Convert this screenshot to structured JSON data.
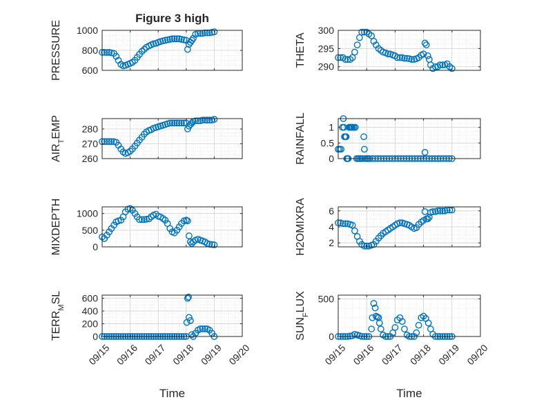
{
  "chart_data": [
    {
      "type": "scatter",
      "title": "Figure 3 high",
      "ylabel_main": "PRESSURE",
      "ylabel_sub": "",
      "ylabel_tail": "",
      "ylim": [
        600,
        1000
      ],
      "yticks": [
        600,
        800,
        1000
      ],
      "xlim": [
        0,
        5
      ],
      "xticks": [
        0,
        1,
        2,
        3,
        4,
        5
      ],
      "xticklabels": [
        "09/15",
        "09/16",
        "09/17",
        "09/18",
        "09/19",
        "09/20"
      ],
      "xlabel": "",
      "show_xticklabels": false,
      "grid": true,
      "color": "#0072BD",
      "x": [
        0.0,
        0.08,
        0.17,
        0.25,
        0.33,
        0.42,
        0.5,
        0.58,
        0.67,
        0.75,
        0.83,
        0.92,
        1.0,
        1.08,
        1.17,
        1.25,
        1.33,
        1.42,
        1.5,
        1.58,
        1.67,
        1.75,
        1.83,
        1.92,
        2.0,
        2.08,
        2.17,
        2.25,
        2.33,
        2.42,
        2.5,
        2.58,
        2.67,
        2.75,
        2.83,
        2.92,
        3.0,
        3.05,
        3.1,
        3.15,
        3.2,
        3.25,
        3.33,
        3.42,
        3.5,
        3.58,
        3.67,
        3.75,
        3.83,
        3.92,
        4.0
      ],
      "y": [
        780,
        780,
        778,
        780,
        775,
        770,
        740,
        700,
        660,
        645,
        650,
        660,
        670,
        680,
        700,
        730,
        760,
        790,
        810,
        830,
        845,
        855,
        865,
        870,
        880,
        888,
        895,
        900,
        905,
        910,
        915,
        915,
        915,
        915,
        910,
        905,
        900,
        810,
        860,
        880,
        900,
        920,
        960,
        970,
        970,
        970,
        975,
        975,
        975,
        980,
        985
      ]
    },
    {
      "type": "scatter",
      "title": "",
      "ylabel_main": "THETA",
      "ylabel_sub": "",
      "ylabel_tail": "",
      "ylim": [
        289,
        300
      ],
      "yticks": [
        290,
        295,
        300
      ],
      "xlim": [
        0,
        5
      ],
      "xticks": [
        0,
        1,
        2,
        3,
        4,
        5
      ],
      "xticklabels": [
        "09/15",
        "09/16",
        "09/17",
        "09/18",
        "09/19",
        "09/20"
      ],
      "xlabel": "",
      "show_xticklabels": false,
      "grid": true,
      "color": "#0072BD",
      "x": [
        0.0,
        0.08,
        0.17,
        0.25,
        0.33,
        0.42,
        0.5,
        0.58,
        0.67,
        0.75,
        0.83,
        0.92,
        1.0,
        1.08,
        1.17,
        1.25,
        1.33,
        1.42,
        1.5,
        1.58,
        1.67,
        1.75,
        1.83,
        1.92,
        2.0,
        2.08,
        2.17,
        2.25,
        2.33,
        2.42,
        2.5,
        2.58,
        2.67,
        2.75,
        2.83,
        2.92,
        3.0,
        3.05,
        3.1,
        3.15,
        3.2,
        3.25,
        3.33,
        3.42,
        3.5,
        3.58,
        3.67,
        3.75,
        3.83,
        3.92,
        4.0
      ],
      "y": [
        292.5,
        292.5,
        292.5,
        292,
        292,
        292,
        292.5,
        294,
        296,
        298,
        299.5,
        299.5,
        299.5,
        299,
        298.5,
        297,
        296,
        295,
        294.5,
        294,
        293.8,
        293.5,
        293.5,
        293.2,
        293,
        292.5,
        292.5,
        292.5,
        292.3,
        292.3,
        292.2,
        292,
        292,
        292.2,
        292.5,
        293.2,
        293.5,
        296.5,
        296,
        293,
        292,
        290.5,
        289.5,
        290,
        290,
        290.5,
        290.5,
        290.5,
        290.8,
        290,
        289.5
      ]
    },
    {
      "type": "scatter",
      "title": "",
      "ylabel_main": "AIR",
      "ylabel_sub": "T",
      "ylabel_tail": "EMP",
      "ylim": [
        260,
        287
      ],
      "yticks": [
        260,
        270,
        280
      ],
      "xlim": [
        0,
        5
      ],
      "xticks": [
        0,
        1,
        2,
        3,
        4,
        5
      ],
      "xticklabels": [
        "09/15",
        "09/16",
        "09/17",
        "09/18",
        "09/19",
        "09/20"
      ],
      "xlabel": "",
      "show_xticklabels": false,
      "grid": true,
      "color": "#0072BD",
      "x": [
        0.0,
        0.08,
        0.17,
        0.25,
        0.33,
        0.42,
        0.5,
        0.58,
        0.67,
        0.75,
        0.83,
        0.92,
        1.0,
        1.08,
        1.17,
        1.25,
        1.33,
        1.42,
        1.5,
        1.58,
        1.67,
        1.75,
        1.83,
        1.92,
        2.0,
        2.08,
        2.17,
        2.25,
        2.33,
        2.42,
        2.5,
        2.58,
        2.67,
        2.75,
        2.83,
        2.92,
        3.0,
        3.05,
        3.1,
        3.15,
        3.2,
        3.25,
        3.33,
        3.42,
        3.5,
        3.58,
        3.67,
        3.75,
        3.83,
        3.92,
        4.0
      ],
      "y": [
        271.5,
        271.5,
        271.5,
        271.5,
        271.5,
        271.5,
        271,
        269,
        266.5,
        264.5,
        263.5,
        264,
        265,
        266.5,
        268.5,
        270.5,
        272.5,
        274.5,
        276.5,
        278,
        279,
        279.5,
        280.5,
        281,
        281.5,
        282,
        282.5,
        283,
        283.5,
        284,
        284,
        284,
        284,
        284,
        284,
        284,
        284,
        280,
        282,
        283,
        284,
        285,
        285.5,
        285.5,
        285.5,
        286,
        286,
        286,
        286,
        286,
        286.5
      ]
    },
    {
      "type": "scatter",
      "title": "",
      "ylabel_main": "RAINFALL",
      "ylabel_sub": "",
      "ylabel_tail": "",
      "ylim": [
        0,
        1.28
      ],
      "yticks": [
        0,
        0.5,
        1
      ],
      "xlim": [
        0,
        5
      ],
      "xticks": [
        0,
        1,
        2,
        3,
        4,
        5
      ],
      "xticklabels": [
        "09/15",
        "09/16",
        "09/17",
        "09/18",
        "09/19",
        "09/20"
      ],
      "xlabel": "",
      "show_xticklabels": false,
      "grid": true,
      "color": "#0072BD",
      "x": [
        0.0,
        0.05,
        0.1,
        0.15,
        0.18,
        0.2,
        0.22,
        0.25,
        0.28,
        0.3,
        0.33,
        0.35,
        0.38,
        0.4,
        0.42,
        0.45,
        0.48,
        0.5,
        0.55,
        0.6,
        0.65,
        0.7,
        0.75,
        0.8,
        0.85,
        0.9,
        0.92,
        0.95,
        1.0,
        1.05,
        1.1,
        1.2,
        1.3,
        1.4,
        1.5,
        1.6,
        1.7,
        1.8,
        1.9,
        2.0,
        2.1,
        2.2,
        2.3,
        2.4,
        2.5,
        2.6,
        2.7,
        2.8,
        2.9,
        3.0,
        3.05,
        3.1,
        3.2,
        3.3,
        3.4,
        3.5,
        3.6,
        3.7,
        3.8,
        3.9,
        4.0
      ],
      "y": [
        0.3,
        0.3,
        0.3,
        1.0,
        1.28,
        1.0,
        0.7,
        0.7,
        0.7,
        0.0,
        0.0,
        0.0,
        1.0,
        1.0,
        1.0,
        1.0,
        1.0,
        1.0,
        1.0,
        1.0,
        0.0,
        0.0,
        0.0,
        0.0,
        0.0,
        0.7,
        0.3,
        0.0,
        0.0,
        0.0,
        0.0,
        0.0,
        0.0,
        0.0,
        0.0,
        0.0,
        0.0,
        0.0,
        0.0,
        0.0,
        0.0,
        0.0,
        0.0,
        0.0,
        0.0,
        0.0,
        0.0,
        0.0,
        0.0,
        0.0,
        0.2,
        0.0,
        0.0,
        0.0,
        0.0,
        0.0,
        0.0,
        0.0,
        0.0,
        0.0,
        0.0
      ]
    },
    {
      "type": "scatter",
      "title": "",
      "ylabel_main": "MIXDEPTH",
      "ylabel_sub": "",
      "ylabel_tail": "",
      "ylim": [
        0,
        1200
      ],
      "yticks": [
        0,
        500,
        1000
      ],
      "xlim": [
        0,
        5
      ],
      "xticks": [
        0,
        1,
        2,
        3,
        4,
        5
      ],
      "xticklabels": [
        "09/15",
        "09/16",
        "09/17",
        "09/18",
        "09/19",
        "09/20"
      ],
      "xlabel": "",
      "show_xticklabels": false,
      "grid": true,
      "color": "#0072BD",
      "x": [
        0.0,
        0.08,
        0.17,
        0.25,
        0.33,
        0.42,
        0.5,
        0.58,
        0.67,
        0.75,
        0.83,
        0.92,
        1.0,
        1.08,
        1.17,
        1.25,
        1.33,
        1.42,
        1.5,
        1.58,
        1.67,
        1.75,
        1.83,
        1.92,
        2.0,
        2.08,
        2.17,
        2.25,
        2.33,
        2.42,
        2.5,
        2.58,
        2.67,
        2.75,
        2.83,
        2.92,
        3.0,
        3.05,
        3.1,
        3.15,
        3.2,
        3.25,
        3.33,
        3.42,
        3.5,
        3.58,
        3.67,
        3.75,
        3.83,
        3.92,
        4.0
      ],
      "y": [
        300,
        250,
        350,
        450,
        550,
        650,
        750,
        780,
        800,
        900,
        1050,
        1130,
        1150,
        1100,
        1000,
        900,
        820,
        820,
        820,
        830,
        840,
        900,
        950,
        980,
        920,
        900,
        850,
        800,
        700,
        550,
        450,
        420,
        500,
        600,
        700,
        780,
        800,
        780,
        330,
        150,
        100,
        150,
        200,
        230,
        200,
        180,
        150,
        100,
        80,
        70,
        60
      ]
    },
    {
      "type": "scatter",
      "title": "",
      "ylabel_main": "H2OMIXRA",
      "ylabel_sub": "",
      "ylabel_tail": "",
      "ylim": [
        1.5,
        6.5
      ],
      "yticks": [
        2,
        4,
        6
      ],
      "xlim": [
        0,
        5
      ],
      "xticks": [
        0,
        1,
        2,
        3,
        4,
        5
      ],
      "xticklabels": [
        "09/15",
        "09/16",
        "09/17",
        "09/18",
        "09/19",
        "09/20"
      ],
      "xlabel": "",
      "show_xticklabels": false,
      "grid": true,
      "color": "#0072BD",
      "x": [
        0.0,
        0.08,
        0.17,
        0.25,
        0.33,
        0.42,
        0.5,
        0.58,
        0.67,
        0.75,
        0.83,
        0.92,
        1.0,
        1.08,
        1.17,
        1.25,
        1.33,
        1.42,
        1.5,
        1.58,
        1.67,
        1.75,
        1.83,
        1.92,
        2.0,
        2.08,
        2.17,
        2.25,
        2.33,
        2.42,
        2.5,
        2.58,
        2.67,
        2.75,
        2.83,
        2.92,
        3.0,
        3.05,
        3.1,
        3.15,
        3.2,
        3.25,
        3.33,
        3.42,
        3.5,
        3.58,
        3.67,
        3.75,
        3.83,
        3.92,
        4.0
      ],
      "y": [
        4.5,
        4.5,
        4.4,
        4.4,
        4.4,
        4.3,
        4.2,
        3.5,
        2.8,
        2.2,
        1.8,
        1.6,
        1.6,
        1.6,
        1.7,
        1.8,
        2.2,
        2.6,
        2.9,
        3.2,
        3.4,
        3.6,
        3.8,
        4.0,
        4.2,
        4.4,
        4.5,
        4.5,
        4.4,
        4.3,
        4.2,
        4.0,
        3.8,
        3.9,
        4.3,
        4.6,
        4.8,
        5.9,
        5.0,
        5.0,
        5.2,
        5.8,
        5.9,
        5.9,
        6.0,
        6.0,
        6.0,
        6.0,
        6.1,
        6.1,
        6.1
      ]
    },
    {
      "type": "scatter",
      "title": "",
      "ylabel_main": "TERR",
      "ylabel_sub": "M",
      "ylabel_tail": "SL",
      "ylim": [
        0,
        650
      ],
      "yticks": [
        0,
        200,
        400,
        600
      ],
      "xlim": [
        0,
        5
      ],
      "xticks": [
        0,
        1,
        2,
        3,
        4,
        5
      ],
      "xticklabels": [
        "09/15",
        "09/16",
        "09/17",
        "09/18",
        "09/19",
        "09/20"
      ],
      "xlabel": "Time",
      "show_xticklabels": true,
      "grid": true,
      "color": "#0072BD",
      "x": [
        0.0,
        0.08,
        0.17,
        0.25,
        0.33,
        0.42,
        0.5,
        0.58,
        0.67,
        0.75,
        0.83,
        0.92,
        1.0,
        1.08,
        1.17,
        1.25,
        1.33,
        1.42,
        1.5,
        1.58,
        1.67,
        1.75,
        1.83,
        1.92,
        2.0,
        2.08,
        2.17,
        2.25,
        2.33,
        2.42,
        2.5,
        2.58,
        2.67,
        2.75,
        2.83,
        2.92,
        3.0,
        3.02,
        3.05,
        3.08,
        3.1,
        3.15,
        3.2,
        3.25,
        3.33,
        3.42,
        3.5,
        3.58,
        3.67,
        3.75,
        3.83,
        3.92,
        4.0
      ],
      "y": [
        0,
        0,
        0,
        0,
        0,
        0,
        0,
        0,
        0,
        0,
        0,
        0,
        0,
        0,
        0,
        0,
        0,
        0,
        0,
        0,
        0,
        0,
        0,
        0,
        0,
        0,
        0,
        0,
        0,
        0,
        0,
        0,
        0,
        0,
        0,
        0,
        0,
        220,
        600,
        620,
        300,
        250,
        30,
        0,
        50,
        100,
        120,
        120,
        120,
        120,
        100,
        50,
        0
      ]
    },
    {
      "type": "scatter",
      "title": "",
      "ylabel_main": "SUN",
      "ylabel_sub": "F",
      "ylabel_tail": "LUX",
      "ylim": [
        0,
        550
      ],
      "yticks": [
        0,
        500
      ],
      "xlim": [
        0,
        5
      ],
      "xticks": [
        0,
        1,
        2,
        3,
        4,
        5
      ],
      "xticklabels": [
        "09/15",
        "09/16",
        "09/17",
        "09/18",
        "09/19",
        "09/20"
      ],
      "xlabel": "Time",
      "show_xticklabels": true,
      "grid": true,
      "color": "#0072BD",
      "x": [
        0.0,
        0.08,
        0.17,
        0.25,
        0.33,
        0.42,
        0.5,
        0.58,
        0.67,
        0.75,
        0.83,
        0.92,
        1.0,
        1.08,
        1.17,
        1.2,
        1.25,
        1.3,
        1.33,
        1.38,
        1.42,
        1.45,
        1.5,
        1.58,
        1.67,
        1.75,
        1.83,
        1.92,
        2.0,
        2.08,
        2.17,
        2.25,
        2.33,
        2.42,
        2.5,
        2.58,
        2.67,
        2.75,
        2.83,
        2.92,
        3.0,
        3.08,
        3.17,
        3.25,
        3.33,
        3.42,
        3.5,
        3.58,
        3.67,
        3.75,
        3.83,
        3.92,
        4.0
      ],
      "y": [
        0,
        0,
        0,
        0,
        0,
        5,
        10,
        30,
        20,
        10,
        0,
        0,
        0,
        0,
        100,
        250,
        440,
        380,
        270,
        260,
        250,
        180,
        100,
        20,
        0,
        0,
        0,
        50,
        120,
        220,
        250,
        200,
        100,
        20,
        0,
        0,
        0,
        50,
        150,
        250,
        270,
        240,
        180,
        100,
        30,
        0,
        0,
        0,
        0,
        0,
        0,
        0,
        0
      ]
    }
  ]
}
